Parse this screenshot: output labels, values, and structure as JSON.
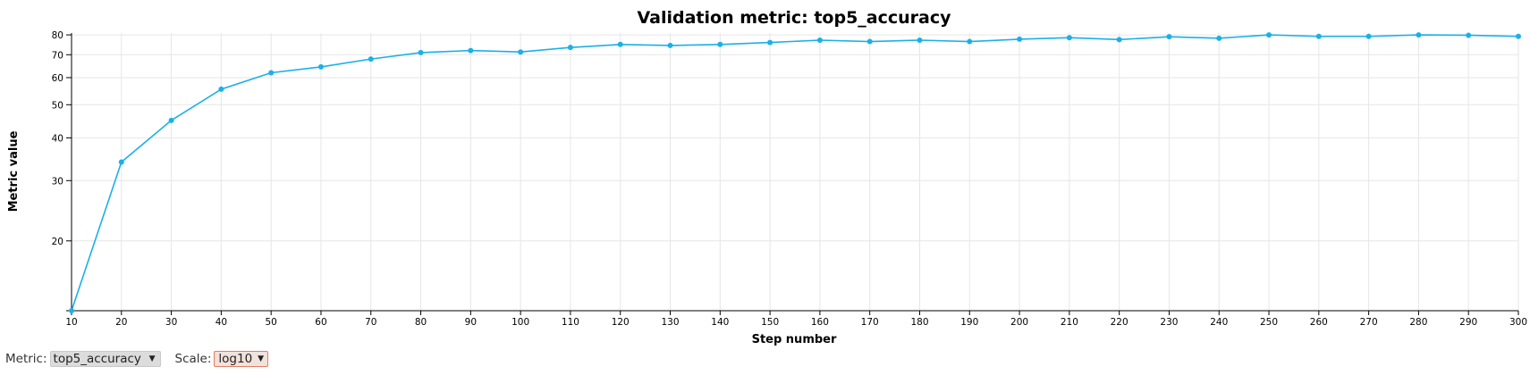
{
  "chart_data": {
    "type": "line",
    "title": "Validation metric: top5_accuracy",
    "xlabel": "Step number",
    "ylabel": "Metric value",
    "x_scale": "linear",
    "y_scale": "log",
    "xlim": [
      10,
      300
    ],
    "ylim": [
      12.5,
      81
    ],
    "x_ticks": [
      10,
      20,
      30,
      40,
      50,
      60,
      70,
      80,
      90,
      100,
      110,
      120,
      130,
      140,
      150,
      160,
      170,
      180,
      190,
      200,
      210,
      220,
      230,
      240,
      250,
      260,
      270,
      280,
      290,
      300
    ],
    "y_ticks": [
      20,
      30,
      40,
      50,
      60,
      70,
      80
    ],
    "grid": true,
    "line_color": "#1ab0e8",
    "series": [
      {
        "x": [
          10,
          20,
          30,
          40,
          50,
          60,
          70,
          80,
          90,
          100,
          110,
          120,
          130,
          140,
          150,
          160,
          170,
          180,
          190,
          200,
          210,
          220,
          230,
          240,
          250,
          260,
          270,
          280,
          290,
          300
        ],
        "values": [
          12.5,
          34.0,
          45.0,
          55.5,
          62.0,
          64.5,
          68.0,
          71.0,
          72.0,
          71.3,
          73.5,
          75.0,
          74.5,
          75.0,
          76.0,
          77.2,
          76.5,
          77.2,
          76.5,
          77.7,
          78.5,
          77.5,
          79.0,
          78.2,
          80.0,
          79.2,
          79.2,
          80.0,
          79.8,
          79.2
        ]
      }
    ]
  },
  "controls": {
    "metric_label": "Metric:",
    "metric_value": "top5_accuracy",
    "scale_label": "Scale:",
    "scale_value": "log10"
  }
}
